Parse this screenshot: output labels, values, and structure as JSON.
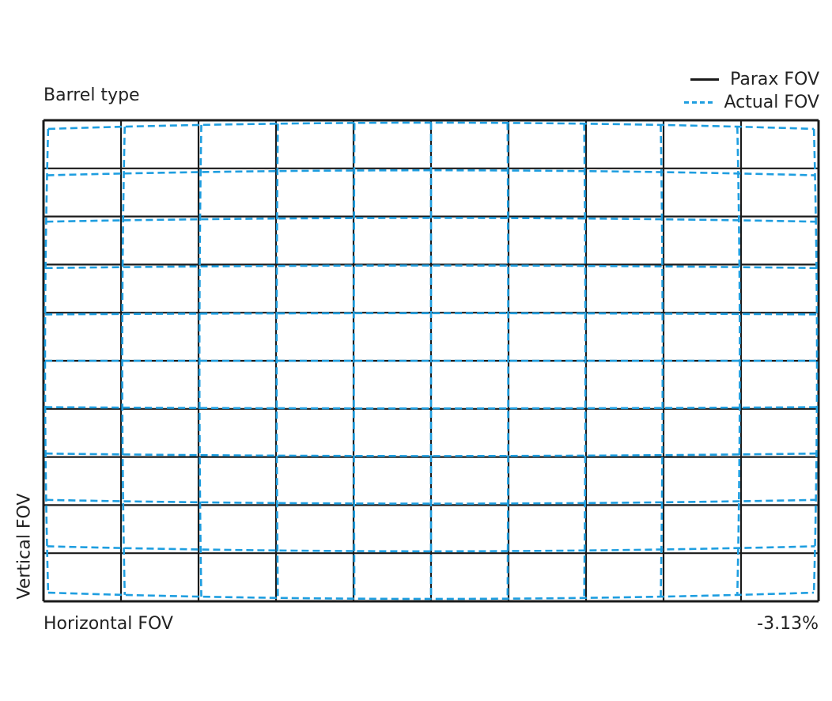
{
  "title": "Barrel type",
  "x_label": "Horizontal FOV",
  "y_label": "Vertical FOV",
  "distortion_value": "-3.13%",
  "grid": {
    "columns": 10,
    "rows": 10
  },
  "legend": [
    {
      "label": "Parax FOV",
      "style": "solid",
      "color": "#1a1a1a"
    },
    {
      "label": "Actual FOV",
      "style": "dashed",
      "color": "#1e9ee0"
    }
  ]
}
